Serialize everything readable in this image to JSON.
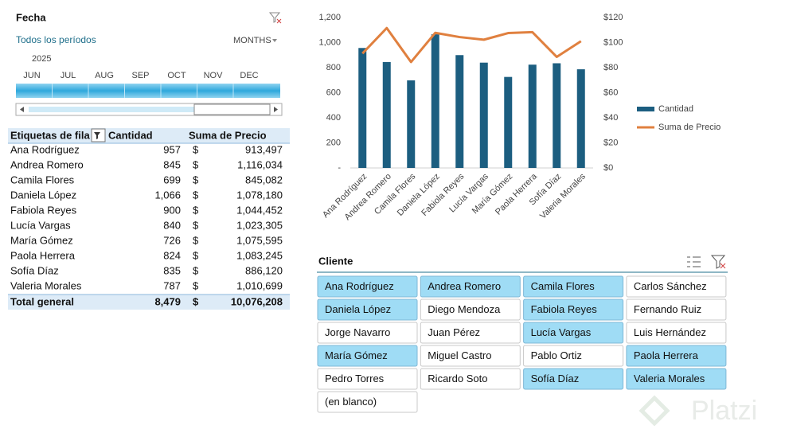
{
  "timeline": {
    "title": "Fecha",
    "period": "Todos los períodos",
    "level": "MONTHS",
    "year": "2025",
    "months": [
      "JUN",
      "JUL",
      "AUG",
      "SEP",
      "OCT",
      "NOV",
      "DEC"
    ]
  },
  "pivot": {
    "headers": [
      "Etiquetas de fila",
      "Cantidad",
      "Suma de Precio"
    ],
    "rows": [
      [
        "Ana Rodríguez",
        "957",
        "$",
        "913,497"
      ],
      [
        "Andrea Romero",
        "845",
        "$",
        "1,116,034"
      ],
      [
        "Camila Flores",
        "699",
        "$",
        "845,082"
      ],
      [
        "Daniela López",
        "1,066",
        "$",
        "1,078,180"
      ],
      [
        "Fabiola Reyes",
        "900",
        "$",
        "1,044,452"
      ],
      [
        "Lucía Vargas",
        "840",
        "$",
        "1,023,305"
      ],
      [
        "María Gómez",
        "726",
        "$",
        "1,075,595"
      ],
      [
        "Paola Herrera",
        "824",
        "$",
        "1,083,245"
      ],
      [
        "Sofía Díaz",
        "835",
        "$",
        "886,120"
      ],
      [
        "Valeria Morales",
        "787",
        "$",
        "1,010,699"
      ]
    ],
    "total": [
      "Total general",
      "8,479",
      "$",
      "10,076,208"
    ]
  },
  "chart_data": {
    "type": "combo",
    "categories": [
      "Ana Rodríguez",
      "Andrea Romero",
      "Camila Flores",
      "Daniela López",
      "Fabiola Reyes",
      "Lucía Vargas",
      "María Gómez",
      "Paola Herrera",
      "Sofía Díaz",
      "Valeria Morales"
    ],
    "series": [
      {
        "name": "Cantidad",
        "type": "bar",
        "color": "#1c5e80",
        "values": [
          957,
          845,
          699,
          1066,
          900,
          840,
          726,
          824,
          835,
          787
        ]
      },
      {
        "name": "Suma de Precio",
        "type": "line",
        "axis": "y2",
        "color": "#e0803f",
        "values": [
          91.3,
          111.6,
          84.5,
          107.8,
          104.4,
          102.3,
          107.6,
          108.3,
          88.6,
          101.1
        ]
      }
    ],
    "ylim": [
      0,
      1200
    ],
    "yticks": [
      {
        "value": 0,
        "label": "-"
      },
      200,
      400,
      600,
      800,
      {
        "value": 1000,
        "label": "1,000"
      },
      {
        "value": 1200,
        "label": "1,200"
      }
    ],
    "y2lim": [
      0,
      120
    ],
    "y2ticks": [
      {
        "value": 0,
        "label": "$0"
      },
      {
        "value": 20,
        "label": "$20"
      },
      {
        "value": 40,
        "label": "$40"
      },
      {
        "value": 60,
        "label": "$60"
      },
      {
        "value": 80,
        "label": "$80"
      },
      {
        "value": 100,
        "label": "$100"
      },
      {
        "value": 120,
        "label": "$120"
      }
    ],
    "legend": "right",
    "grid": false
  },
  "slicer": {
    "title": "Cliente",
    "items": [
      {
        "label": "Ana Rodríguez",
        "selected": true
      },
      {
        "label": "Andrea Romero",
        "selected": true
      },
      {
        "label": "Camila Flores",
        "selected": true
      },
      {
        "label": "Carlos Sánchez",
        "selected": false
      },
      {
        "label": "Daniela López",
        "selected": true
      },
      {
        "label": "Diego Mendoza",
        "selected": false
      },
      {
        "label": "Fabiola Reyes",
        "selected": true
      },
      {
        "label": "Fernando Ruiz",
        "selected": false
      },
      {
        "label": "Jorge Navarro",
        "selected": false
      },
      {
        "label": "Juan Pérez",
        "selected": false
      },
      {
        "label": "Lucía Vargas",
        "selected": true
      },
      {
        "label": "Luis Hernández",
        "selected": false
      },
      {
        "label": "María Gómez",
        "selected": true
      },
      {
        "label": "Miguel Castro",
        "selected": false
      },
      {
        "label": "Pablo Ortiz",
        "selected": false
      },
      {
        "label": "Paola Herrera",
        "selected": true
      },
      {
        "label": "Pedro Torres",
        "selected": false
      },
      {
        "label": "Ricardo Soto",
        "selected": false
      },
      {
        "label": "Sofía Díaz",
        "selected": true
      },
      {
        "label": "Valeria Morales",
        "selected": true
      },
      {
        "label": "(en blanco)",
        "selected": false
      }
    ]
  },
  "watermark": "Platzi"
}
